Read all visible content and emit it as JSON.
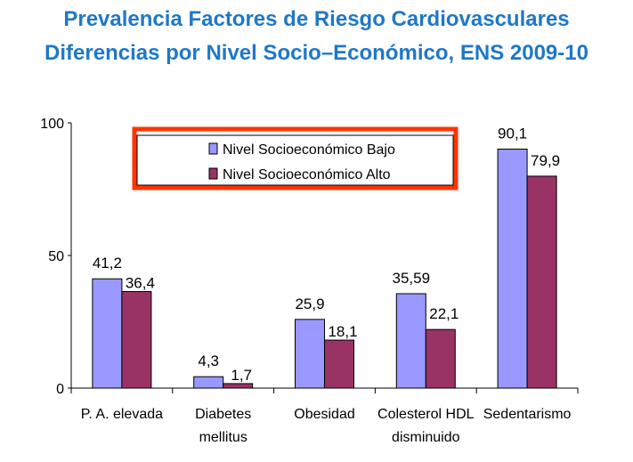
{
  "chart_data": {
    "type": "bar",
    "title": [
      "Prevalencia Factores de Riesgo Cardiovasculares",
      "Diferencias por Nivel Socio–Económico, ENS 2009-10"
    ],
    "categories": [
      [
        "P. A. elevada"
      ],
      [
        "Diabetes",
        "mellitus"
      ],
      [
        "Obesidad"
      ],
      [
        "Colesterol HDL",
        "disminuido"
      ],
      [
        "Sedentarismo"
      ]
    ],
    "series": [
      {
        "name": "Nivel Socioeconómico Bajo",
        "values": [
          41.2,
          4.3,
          25.9,
          35.59,
          90.1
        ],
        "labels": [
          "41,2",
          "4,3",
          "25,9",
          "35,59",
          "90,1"
        ],
        "color": "#9999ff"
      },
      {
        "name": "Nivel Socioeconómico Alto",
        "values": [
          36.4,
          1.7,
          18.1,
          22.1,
          79.9
        ],
        "labels": [
          "36,4",
          "1,7",
          "18,1",
          "22,1",
          "79,9"
        ],
        "color": "#993366"
      }
    ],
    "ylim": [
      0,
      100
    ],
    "yticks": [
      "0",
      "50",
      "100"
    ],
    "grid": false,
    "legend": "top-center",
    "legend_highlight_color": "#ff3300"
  }
}
